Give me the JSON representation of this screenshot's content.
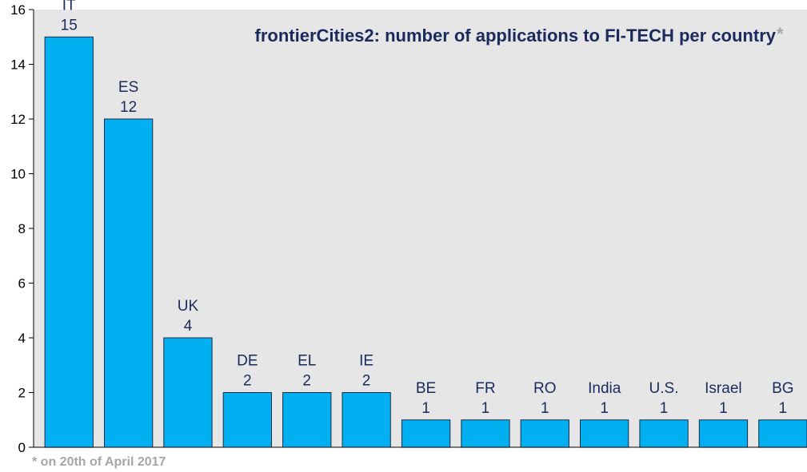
{
  "chart_data": {
    "type": "bar",
    "title": "frontierCities2: number of applications to FI-TECH per country",
    "title_marker": "*",
    "footnote": "* on 20th of April 2017",
    "categories": [
      "IT",
      "ES",
      "UK",
      "DE",
      "EL",
      "IE",
      "BE",
      "FR",
      "RO",
      "India",
      "U.S.",
      "Israel",
      "BG"
    ],
    "values": [
      15,
      12,
      4,
      2,
      2,
      2,
      1,
      1,
      1,
      1,
      1,
      1,
      1
    ],
    "ylim": [
      0,
      16
    ],
    "yticks": [
      0,
      2,
      4,
      6,
      8,
      10,
      12,
      14,
      16
    ],
    "xlabel": "",
    "ylabel": "",
    "grid": false,
    "legend": "none",
    "colors": {
      "bar": "#00b0f0",
      "bar_edge": "#1f2a4a",
      "plot_bg": "#e6e6e6",
      "label": "#1b2a5c",
      "title": "#1b2a5c",
      "muted": "#a6a6a6"
    }
  }
}
